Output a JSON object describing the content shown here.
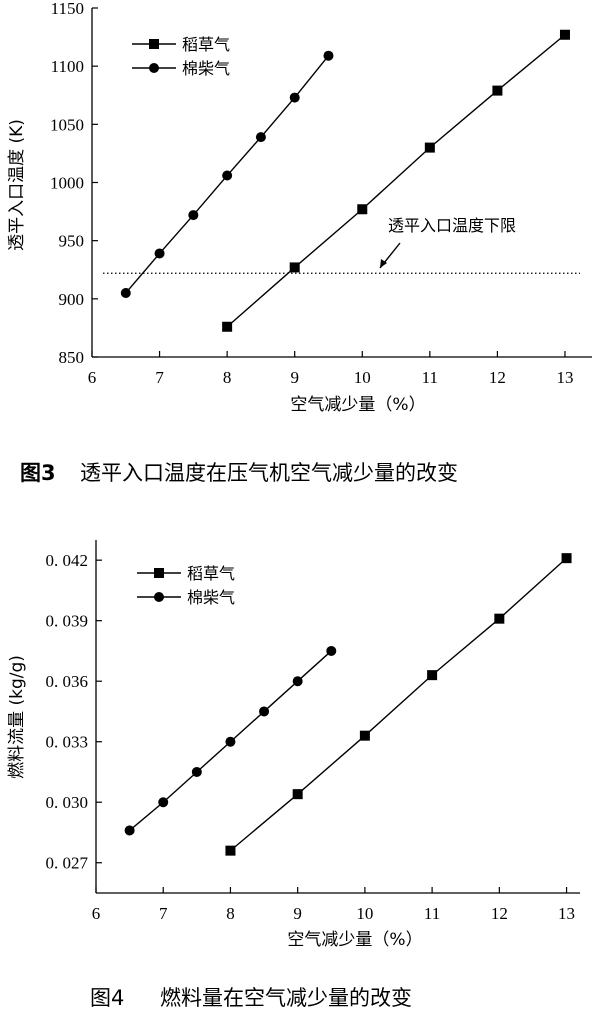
{
  "figures": [
    {
      "caption_num": "图3",
      "caption_text": "透平入口温度在压气机空气减少量的改变"
    },
    {
      "caption_num": "图4",
      "caption_text": "燃料量在空气减少量的改变"
    }
  ],
  "chart_data": [
    {
      "type": "line",
      "xlabel": "空气减少量（%）",
      "ylabel": "透平入口温度 (K)",
      "xlim": [
        6,
        13.4
      ],
      "ylim": [
        850,
        1150
      ],
      "xticks": [
        6,
        7,
        8,
        9,
        10,
        11,
        12,
        13
      ],
      "yticks": [
        850,
        900,
        950,
        1000,
        1050,
        1100,
        1150
      ],
      "ytick_labels": [
        "850",
        "900",
        "950",
        "1000",
        "1050",
        "1100",
        "1150"
      ],
      "legend_position": "top-left",
      "series": [
        {
          "name": "稻草气",
          "marker": "square",
          "x": [
            8,
            9,
            10,
            11,
            12,
            13
          ],
          "y": [
            876,
            927,
            977,
            1030,
            1079,
            1127
          ]
        },
        {
          "name": "棉柴气",
          "marker": "circle",
          "x": [
            6.5,
            7,
            7.5,
            8,
            8.5,
            9,
            9.5
          ],
          "y": [
            905,
            939,
            972,
            1006,
            1039,
            1073,
            1109
          ]
        }
      ],
      "reference_line": {
        "y": 922,
        "style": "dotted",
        "label": "透平入口温度下限"
      }
    },
    {
      "type": "line",
      "xlabel": "空气减少量（%）",
      "ylabel": "燃料流量 (kg/g)",
      "xlim": [
        6,
        13.2
      ],
      "ylim": [
        0.0255,
        0.043
      ],
      "xticks": [
        6,
        7,
        8,
        9,
        10,
        11,
        12,
        13
      ],
      "yticks": [
        0.027,
        0.03,
        0.033,
        0.036,
        0.039,
        0.042
      ],
      "ytick_labels": [
        "0. 027",
        "0. 030",
        "0. 033",
        "0. 036",
        "0. 039",
        "0. 042"
      ],
      "legend_position": "top-left",
      "series": [
        {
          "name": "稻草气",
          "marker": "square",
          "x": [
            8,
            9,
            10,
            11,
            12,
            13
          ],
          "y": [
            0.0276,
            0.0304,
            0.0333,
            0.0363,
            0.0391,
            0.0421
          ]
        },
        {
          "name": "棉柴气",
          "marker": "circle",
          "x": [
            6.5,
            7,
            7.5,
            8,
            8.5,
            9,
            9.5
          ],
          "y": [
            0.0286,
            0.03,
            0.0315,
            0.033,
            0.0345,
            0.036,
            0.0375
          ]
        }
      ]
    }
  ]
}
